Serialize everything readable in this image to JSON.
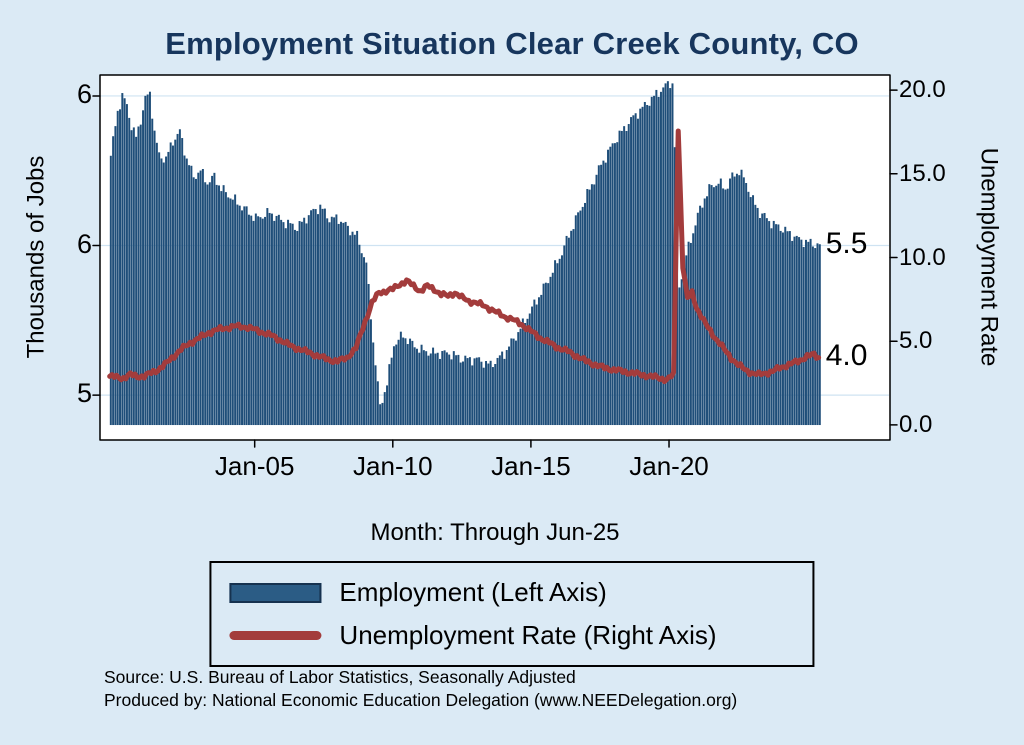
{
  "title": "Employment Situation Clear Creek  County, CO",
  "notes": [
    "Source: U.S. Bureau of Labor Statistics, Seasonally Adjusted",
    "Produced by: National Economic Education Delegation (www.NEEDelegation.org)"
  ],
  "legend": {
    "items": [
      {
        "label": "Employment (Left Axis)",
        "swatch": "bar",
        "color": "#1f4e79"
      },
      {
        "label": "Unemployment Rate (Right Axis)",
        "swatch": "line",
        "color": "#a33c3c"
      }
    ]
  },
  "chart_data": {
    "type": "bar",
    "title": "Employment Situation Clear Creek  County, CO",
    "xlabel": "Month: Through Jun-25",
    "xlim": [
      1999.4,
      2028.0
    ],
    "x_ticks": [
      {
        "year": 2005,
        "label": "Jan-05"
      },
      {
        "year": 2010,
        "label": "Jan-10"
      },
      {
        "year": 2015,
        "label": "Jan-15"
      },
      {
        "year": 2020,
        "label": "Jan-20"
      }
    ],
    "bar_base": 4.9,
    "bar_end_year": 2025.42,
    "grid": true,
    "left_axis": {
      "label": "Thousands of Jobs",
      "lim": [
        4.85,
        6.07
      ],
      "ticks": [
        {
          "value": 6.0,
          "label": "6"
        },
        {
          "value": 5.5,
          "label": "6"
        },
        {
          "value": 5.0,
          "label": "5"
        }
      ]
    },
    "right_axis": {
      "label": "Unemployment Rate",
      "lim": [
        -0.9,
        20.9
      ],
      "ticks": [
        {
          "value": 20,
          "label": "20.0"
        },
        {
          "value": 15,
          "label": "15.0"
        },
        {
          "value": 10,
          "label": "10.0"
        },
        {
          "value": 5,
          "label": "5.0"
        },
        {
          "value": 0,
          "label": "0.0"
        }
      ]
    },
    "end_labels": [
      {
        "text": "5.5",
        "axis": "left",
        "value": 5.5
      },
      {
        "text": "4.0",
        "axis": "right",
        "value": 4.0
      }
    ],
    "series": [
      {
        "name": "Employment (Left Axis)",
        "type": "bar",
        "axis": "left",
        "color": "#1f4e79",
        "points": [
          [
            1999.75,
            5.8
          ],
          [
            2000.0,
            5.95
          ],
          [
            2000.17,
            6.0
          ],
          [
            2000.33,
            5.97
          ],
          [
            2000.5,
            5.9
          ],
          [
            2000.67,
            5.86
          ],
          [
            2000.83,
            5.92
          ],
          [
            2001.0,
            5.99
          ],
          [
            2001.17,
            6.01
          ],
          [
            2001.33,
            5.88
          ],
          [
            2001.5,
            5.8
          ],
          [
            2001.75,
            5.79
          ],
          [
            2002.0,
            5.85
          ],
          [
            2002.25,
            5.88
          ],
          [
            2002.5,
            5.79
          ],
          [
            2002.75,
            5.73
          ],
          [
            2003.0,
            5.75
          ],
          [
            2003.25,
            5.71
          ],
          [
            2003.5,
            5.73
          ],
          [
            2003.75,
            5.69
          ],
          [
            2004.0,
            5.67
          ],
          [
            2004.5,
            5.63
          ],
          [
            2005.0,
            5.59
          ],
          [
            2005.5,
            5.61
          ],
          [
            2006.0,
            5.58
          ],
          [
            2006.5,
            5.56
          ],
          [
            2007.0,
            5.61
          ],
          [
            2007.33,
            5.63
          ],
          [
            2007.67,
            5.59
          ],
          [
            2008.0,
            5.59
          ],
          [
            2008.33,
            5.56
          ],
          [
            2008.67,
            5.53
          ],
          [
            2009.0,
            5.44
          ],
          [
            2009.25,
            5.18
          ],
          [
            2009.5,
            4.96
          ],
          [
            2009.75,
            5.04
          ],
          [
            2010.0,
            5.17
          ],
          [
            2010.33,
            5.2
          ],
          [
            2010.67,
            5.17
          ],
          [
            2011.0,
            5.15
          ],
          [
            2011.5,
            5.14
          ],
          [
            2012.0,
            5.14
          ],
          [
            2012.5,
            5.12
          ],
          [
            2013.0,
            5.12
          ],
          [
            2013.5,
            5.1
          ],
          [
            2014.0,
            5.14
          ],
          [
            2014.5,
            5.21
          ],
          [
            2015.0,
            5.29
          ],
          [
            2015.5,
            5.37
          ],
          [
            2016.0,
            5.46
          ],
          [
            2016.5,
            5.57
          ],
          [
            2017.0,
            5.67
          ],
          [
            2017.5,
            5.77
          ],
          [
            2018.0,
            5.85
          ],
          [
            2018.33,
            5.89
          ],
          [
            2018.67,
            5.93
          ],
          [
            2019.0,
            5.96
          ],
          [
            2019.33,
            5.99
          ],
          [
            2019.67,
            6.02
          ],
          [
            2019.92,
            6.04
          ],
          [
            2020.08,
            6.05
          ],
          [
            2020.25,
            5.62
          ],
          [
            2020.33,
            5.36
          ],
          [
            2020.5,
            5.44
          ],
          [
            2020.75,
            5.52
          ],
          [
            2021.0,
            5.6
          ],
          [
            2021.25,
            5.66
          ],
          [
            2021.5,
            5.7
          ],
          [
            2021.75,
            5.71
          ],
          [
            2022.0,
            5.69
          ],
          [
            2022.25,
            5.73
          ],
          [
            2022.5,
            5.75
          ],
          [
            2022.75,
            5.71
          ],
          [
            2023.0,
            5.65
          ],
          [
            2023.25,
            5.61
          ],
          [
            2023.5,
            5.59
          ],
          [
            2023.75,
            5.57
          ],
          [
            2024.0,
            5.56
          ],
          [
            2024.33,
            5.54
          ],
          [
            2024.67,
            5.52
          ],
          [
            2025.0,
            5.51
          ],
          [
            2025.42,
            5.5
          ]
        ]
      },
      {
        "name": "Unemployment Rate (Right Axis)",
        "type": "line",
        "axis": "right",
        "color": "#a33c3c",
        "points": [
          [
            1999.75,
            2.9
          ],
          [
            2000.0,
            2.85
          ],
          [
            2000.25,
            2.8
          ],
          [
            2000.5,
            3.0
          ],
          [
            2000.75,
            2.9
          ],
          [
            2001.0,
            2.9
          ],
          [
            2001.25,
            3.1
          ],
          [
            2001.5,
            3.3
          ],
          [
            2001.75,
            3.6
          ],
          [
            2002.0,
            4.0
          ],
          [
            2002.33,
            4.5
          ],
          [
            2002.67,
            4.9
          ],
          [
            2003.0,
            5.2
          ],
          [
            2003.33,
            5.5
          ],
          [
            2003.67,
            5.7
          ],
          [
            2004.0,
            5.8
          ],
          [
            2004.33,
            5.9
          ],
          [
            2004.67,
            5.85
          ],
          [
            2005.0,
            5.7
          ],
          [
            2005.33,
            5.5
          ],
          [
            2005.67,
            5.3
          ],
          [
            2006.0,
            5.0
          ],
          [
            2006.33,
            4.7
          ],
          [
            2006.67,
            4.5
          ],
          [
            2007.0,
            4.3
          ],
          [
            2007.33,
            4.1
          ],
          [
            2007.67,
            3.9
          ],
          [
            2008.0,
            3.8
          ],
          [
            2008.33,
            4.0
          ],
          [
            2008.67,
            4.6
          ],
          [
            2009.0,
            6.2
          ],
          [
            2009.25,
            7.3
          ],
          [
            2009.5,
            7.9
          ],
          [
            2009.75,
            8.0
          ],
          [
            2010.0,
            8.1
          ],
          [
            2010.25,
            8.4
          ],
          [
            2010.5,
            8.6
          ],
          [
            2010.75,
            8.3
          ],
          [
            2011.0,
            8.0
          ],
          [
            2011.25,
            8.3
          ],
          [
            2011.5,
            8.1
          ],
          [
            2011.75,
            7.8
          ],
          [
            2012.0,
            7.7
          ],
          [
            2012.25,
            7.9
          ],
          [
            2012.5,
            7.6
          ],
          [
            2012.75,
            7.4
          ],
          [
            2013.0,
            7.3
          ],
          [
            2013.33,
            7.1
          ],
          [
            2013.67,
            6.8
          ],
          [
            2014.0,
            6.5
          ],
          [
            2014.33,
            6.3
          ],
          [
            2014.67,
            6.0
          ],
          [
            2015.0,
            5.6
          ],
          [
            2015.33,
            5.2
          ],
          [
            2015.67,
            4.9
          ],
          [
            2016.0,
            4.6
          ],
          [
            2016.33,
            4.4
          ],
          [
            2016.67,
            4.1
          ],
          [
            2017.0,
            3.8
          ],
          [
            2017.33,
            3.6
          ],
          [
            2017.67,
            3.4
          ],
          [
            2018.0,
            3.3
          ],
          [
            2018.33,
            3.2
          ],
          [
            2018.67,
            3.1
          ],
          [
            2019.0,
            3.0
          ],
          [
            2019.33,
            2.9
          ],
          [
            2019.67,
            2.8
          ],
          [
            2019.92,
            2.7
          ],
          [
            2020.17,
            3.0
          ],
          [
            2020.33,
            17.8
          ],
          [
            2020.5,
            9.5
          ],
          [
            2020.67,
            7.5
          ],
          [
            2020.83,
            7.9
          ],
          [
            2021.0,
            7.0
          ],
          [
            2021.17,
            6.5
          ],
          [
            2021.33,
            6.0
          ],
          [
            2021.5,
            5.6
          ],
          [
            2021.67,
            5.2
          ],
          [
            2021.83,
            4.9
          ],
          [
            2022.0,
            4.5
          ],
          [
            2022.25,
            4.0
          ],
          [
            2022.5,
            3.6
          ],
          [
            2022.75,
            3.3
          ],
          [
            2023.0,
            3.1
          ],
          [
            2023.25,
            3.0
          ],
          [
            2023.5,
            3.1
          ],
          [
            2023.75,
            3.2
          ],
          [
            2024.0,
            3.4
          ],
          [
            2024.33,
            3.6
          ],
          [
            2024.67,
            3.8
          ],
          [
            2025.0,
            4.1
          ],
          [
            2025.25,
            4.2
          ],
          [
            2025.42,
            4.0
          ]
        ]
      }
    ]
  }
}
